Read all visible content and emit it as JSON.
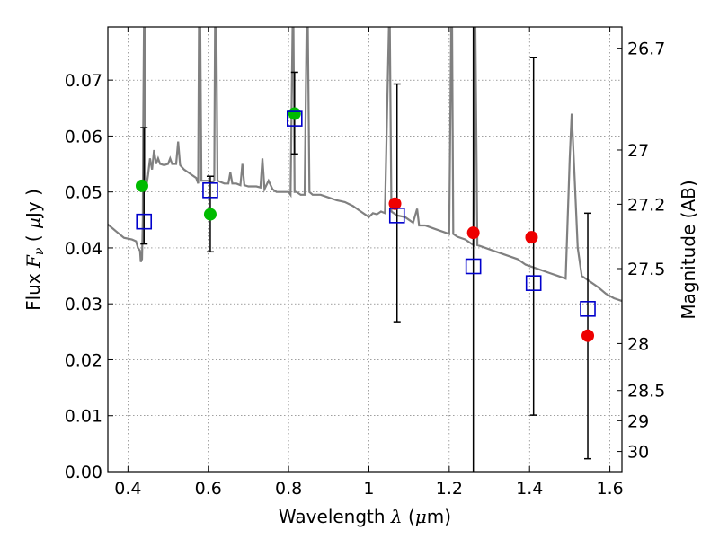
{
  "chart_data": {
    "type": "scatter",
    "xlabel": "Wavelength  λ (μm)",
    "xlabel_parts": {
      "pre": "Wavelength  ",
      "lambda": "λ",
      "mid": " (",
      "mu": "μ",
      "post": "m)"
    },
    "ylabel": "Flux  Fν  ( μJy )",
    "ylabel_parts": {
      "pre": "Flux  ",
      "F": "F",
      "nu": "ν",
      "open": "  ( ",
      "mu": "μ",
      "post": "Jy )"
    },
    "y2label": "Magnitude (AB)",
    "xlim": [
      0.35,
      1.63
    ],
    "ylim": [
      0.0,
      0.0795
    ],
    "grid": true,
    "x_ticks": [
      {
        "value": 0.4,
        "label": "0.4"
      },
      {
        "value": 0.6,
        "label": "0.6"
      },
      {
        "value": 0.8,
        "label": "0.8"
      },
      {
        "value": 1.0,
        "label": "1"
      },
      {
        "value": 1.2,
        "label": "1.2"
      },
      {
        "value": 1.4,
        "label": "1.4"
      },
      {
        "value": 1.6,
        "label": "1.6"
      }
    ],
    "y_ticks": [
      {
        "value": 0.0,
        "label": "0.00"
      },
      {
        "value": 0.01,
        "label": "0.01"
      },
      {
        "value": 0.02,
        "label": "0.02"
      },
      {
        "value": 0.03,
        "label": "0.03"
      },
      {
        "value": 0.04,
        "label": "0.04"
      },
      {
        "value": 0.05,
        "label": "0.05"
      },
      {
        "value": 0.06,
        "label": "0.06"
      },
      {
        "value": 0.07,
        "label": "0.07"
      }
    ],
    "y2_ticks": [
      {
        "label": "26.7"
      },
      {
        "label": "27"
      },
      {
        "label": "27.2"
      },
      {
        "label": "27.5"
      },
      {
        "label": "28"
      },
      {
        "label": "28.5"
      },
      {
        "label": "29"
      },
      {
        "label": "30"
      }
    ],
    "series": [
      {
        "kind": "model_spectrum",
        "color": "#808080",
        "points": [
          [
            0.35,
            0.0442
          ],
          [
            0.37,
            0.043
          ],
          [
            0.39,
            0.0418
          ],
          [
            0.41,
            0.0415
          ],
          [
            0.42,
            0.0412
          ],
          [
            0.425,
            0.04
          ],
          [
            0.43,
            0.0395
          ],
          [
            0.432,
            0.0375
          ],
          [
            0.435,
            0.038
          ],
          [
            0.437,
            0.045
          ],
          [
            0.438,
            0.06
          ],
          [
            0.44,
            0.08
          ],
          [
            0.442,
            0.08
          ],
          [
            0.444,
            0.05
          ],
          [
            0.45,
            0.053
          ],
          [
            0.455,
            0.056
          ],
          [
            0.46,
            0.054
          ],
          [
            0.465,
            0.0575
          ],
          [
            0.47,
            0.055
          ],
          [
            0.475,
            0.056
          ],
          [
            0.48,
            0.055
          ],
          [
            0.49,
            0.0548
          ],
          [
            0.5,
            0.055
          ],
          [
            0.505,
            0.056
          ],
          [
            0.51,
            0.055
          ],
          [
            0.52,
            0.055
          ],
          [
            0.525,
            0.059
          ],
          [
            0.53,
            0.0548
          ],
          [
            0.54,
            0.054
          ],
          [
            0.55,
            0.0535
          ],
          [
            0.56,
            0.053
          ],
          [
            0.57,
            0.0525
          ],
          [
            0.575,
            0.0515
          ],
          [
            0.577,
            0.08
          ],
          [
            0.58,
            0.08
          ],
          [
            0.583,
            0.052
          ],
          [
            0.59,
            0.052
          ],
          [
            0.6,
            0.052
          ],
          [
            0.61,
            0.0518
          ],
          [
            0.615,
            0.052
          ],
          [
            0.617,
            0.08
          ],
          [
            0.62,
            0.08
          ],
          [
            0.623,
            0.052
          ],
          [
            0.63,
            0.0518
          ],
          [
            0.64,
            0.0515
          ],
          [
            0.65,
            0.0515
          ],
          [
            0.655,
            0.0535
          ],
          [
            0.66,
            0.0515
          ],
          [
            0.67,
            0.0515
          ],
          [
            0.68,
            0.0512
          ],
          [
            0.685,
            0.055
          ],
          [
            0.69,
            0.0512
          ],
          [
            0.7,
            0.051
          ],
          [
            0.72,
            0.051
          ],
          [
            0.73,
            0.0508
          ],
          [
            0.735,
            0.056
          ],
          [
            0.74,
            0.0505
          ],
          [
            0.75,
            0.052
          ],
          [
            0.76,
            0.0505
          ],
          [
            0.77,
            0.05
          ],
          [
            0.78,
            0.05
          ],
          [
            0.8,
            0.05
          ],
          [
            0.805,
            0.0495
          ],
          [
            0.81,
            0.08
          ],
          [
            0.812,
            0.08
          ],
          [
            0.815,
            0.05
          ],
          [
            0.82,
            0.05
          ],
          [
            0.83,
            0.0495
          ],
          [
            0.84,
            0.0495
          ],
          [
            0.845,
            0.08
          ],
          [
            0.848,
            0.08
          ],
          [
            0.852,
            0.05
          ],
          [
            0.86,
            0.0495
          ],
          [
            0.88,
            0.0495
          ],
          [
            0.9,
            0.049
          ],
          [
            0.92,
            0.0485
          ],
          [
            0.94,
            0.0482
          ],
          [
            0.96,
            0.0475
          ],
          [
            0.98,
            0.0465
          ],
          [
            1.0,
            0.0455
          ],
          [
            1.01,
            0.0462
          ],
          [
            1.02,
            0.046
          ],
          [
            1.03,
            0.0465
          ],
          [
            1.04,
            0.0462
          ],
          [
            1.05,
            0.08
          ],
          [
            1.052,
            0.08
          ],
          [
            1.056,
            0.0465
          ],
          [
            1.07,
            0.0458
          ],
          [
            1.09,
            0.0455
          ],
          [
            1.1,
            0.045
          ],
          [
            1.11,
            0.0445
          ],
          [
            1.12,
            0.047
          ],
          [
            1.125,
            0.044
          ],
          [
            1.14,
            0.044
          ],
          [
            1.16,
            0.0435
          ],
          [
            1.18,
            0.043
          ],
          [
            1.2,
            0.0425
          ],
          [
            1.205,
            0.08
          ],
          [
            1.207,
            0.08
          ],
          [
            1.21,
            0.0425
          ],
          [
            1.22,
            0.042
          ],
          [
            1.24,
            0.0415
          ],
          [
            1.26,
            0.0405
          ],
          [
            1.263,
            0.08
          ],
          [
            1.265,
            0.08
          ],
          [
            1.27,
            0.0405
          ],
          [
            1.29,
            0.04
          ],
          [
            1.31,
            0.0395
          ],
          [
            1.33,
            0.039
          ],
          [
            1.35,
            0.0385
          ],
          [
            1.37,
            0.038
          ],
          [
            1.39,
            0.037
          ],
          [
            1.41,
            0.0365
          ],
          [
            1.43,
            0.036
          ],
          [
            1.45,
            0.0355
          ],
          [
            1.47,
            0.035
          ],
          [
            1.49,
            0.0345
          ],
          [
            1.5,
            0.056
          ],
          [
            1.505,
            0.064
          ],
          [
            1.51,
            0.056
          ],
          [
            1.52,
            0.04
          ],
          [
            1.53,
            0.035
          ],
          [
            1.55,
            0.034
          ],
          [
            1.57,
            0.033
          ],
          [
            1.59,
            0.0318
          ],
          [
            1.61,
            0.031
          ],
          [
            1.63,
            0.0305
          ]
        ]
      },
      {
        "kind": "model_photometry",
        "marker": "open-square",
        "color": "#0000cc",
        "x": [
          0.44,
          0.605,
          0.815,
          1.07,
          1.26,
          1.41,
          1.545
        ],
        "y": [
          0.0447,
          0.0503,
          0.0631,
          0.0458,
          0.0367,
          0.0337,
          0.0291
        ],
        "yerr_low": [
          0.0407,
          0.0393,
          0.0568,
          0.0268,
          0.0,
          0.0101,
          0.0023
        ],
        "yerr_high": [
          0.0615,
          0.0528,
          0.0714,
          0.0693,
          0.0795,
          0.074,
          0.0462
        ]
      },
      {
        "kind": "observed",
        "marker": "circle",
        "color": "#00bb00",
        "x": [
          0.435,
          0.605,
          0.815
        ],
        "y": [
          0.0511,
          0.046,
          0.064
        ]
      },
      {
        "kind": "observed",
        "marker": "circle",
        "color": "#ee0000",
        "x": [
          1.065,
          1.26,
          1.405,
          1.545
        ],
        "y": [
          0.0479,
          0.0427,
          0.0419,
          0.0243
        ]
      }
    ]
  },
  "y2_positions_flux": [
    0.0757,
    0.0575,
    0.0478,
    0.0363,
    0.0229,
    0.0145,
    0.0091,
    0.0036
  ]
}
